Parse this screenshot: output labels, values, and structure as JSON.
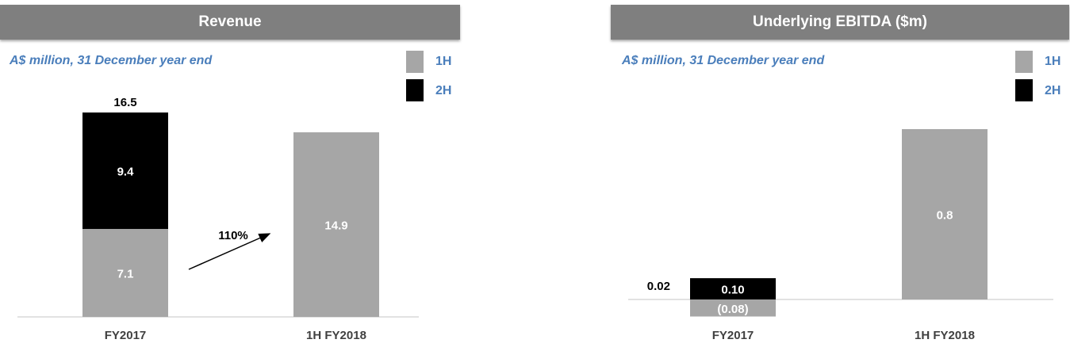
{
  "chart_data": [
    {
      "type": "bar",
      "title": "Revenue",
      "subtitle": "A$ million, 31 December year end",
      "categories": [
        "FY2017",
        "1H FY2018"
      ],
      "series": [
        {
          "name": "1H",
          "color": "#a6a6a6",
          "values": [
            7.1,
            14.9
          ],
          "labels": [
            "7.1",
            "14.9"
          ]
        },
        {
          "name": "2H",
          "color": "#000000",
          "values": [
            9.4,
            null
          ],
          "labels": [
            "9.4",
            ""
          ]
        }
      ],
      "totals": [
        "16.5",
        ""
      ],
      "annotation": "110%",
      "ylim": [
        0,
        16.5
      ]
    },
    {
      "type": "bar",
      "title": "Underlying EBITDA ($m)",
      "subtitle": "A$ million, 31 December year end",
      "categories": [
        "FY2017",
        "1H FY2018"
      ],
      "series": [
        {
          "name": "1H",
          "color": "#a6a6a6",
          "values": [
            -0.08,
            0.8
          ],
          "labels": [
            "(0.08)",
            "0.8"
          ]
        },
        {
          "name": "2H",
          "color": "#000000",
          "values": [
            0.1,
            null
          ],
          "labels": [
            "0.10",
            ""
          ]
        }
      ],
      "totals": [
        "0.02",
        ""
      ],
      "ylim": [
        -0.08,
        0.8
      ]
    }
  ]
}
